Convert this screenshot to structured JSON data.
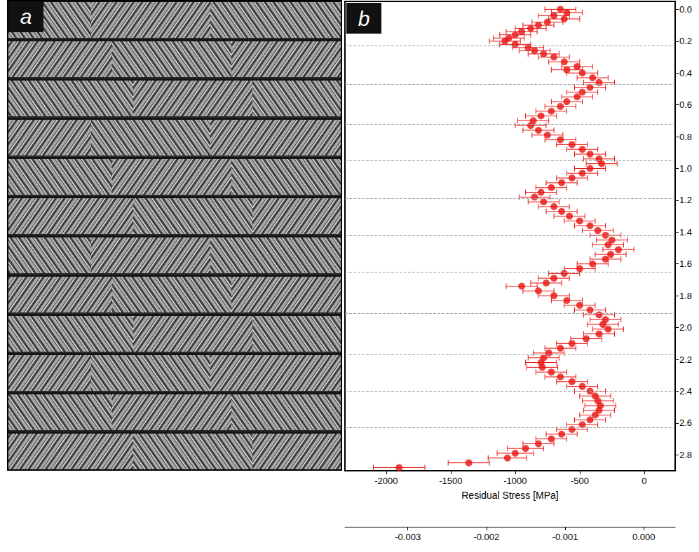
{
  "panel_labels": [
    "a",
    "b"
  ],
  "chart_data": {
    "type": "scatter",
    "x_label": "Residual Stress [MPa]",
    "xlim": [
      -2320,
      240
    ],
    "xticks": [
      -2000,
      -1500,
      -1000,
      -500,
      0
    ],
    "ylim": [
      -0.05,
      2.9
    ],
    "yticks": [
      {
        "value": 0,
        "label": "0.0"
      },
      0.2,
      0.4,
      0.6,
      0.8,
      {
        "value": 1,
        "label": "1.0"
      },
      1.2,
      1.4,
      1.6,
      1.8,
      {
        "value": 2,
        "label": "2.0"
      },
      2.2,
      2.4,
      2.6,
      2.8
    ],
    "x2lim": [
      -0.0038,
      0.0004
    ],
    "x2ticks": [
      -0.003,
      -0.002,
      -0.001,
      {
        "value": 0,
        "label": "0.000"
      }
    ],
    "grid": false,
    "reference_lines": {
      "y": [
        0.23,
        0.47,
        0.72,
        0.95,
        1.19,
        1.42,
        1.65,
        1.91,
        2.17,
        2.4,
        2.63
      ],
      "line_style": "dashed",
      "color": "#a0a0a0"
    },
    "series": [
      {
        "color": "#e8110f",
        "marker": "circle",
        "y": [
          0.0,
          0.02,
          0.04,
          0.06,
          0.08,
          0.1,
          0.12,
          0.14,
          0.16,
          0.18,
          0.2,
          0.22,
          0.24,
          0.26,
          0.28,
          0.3,
          0.33,
          0.36,
          0.38,
          0.4,
          0.43,
          0.46,
          0.49,
          0.52,
          0.55,
          0.58,
          0.61,
          0.64,
          0.67,
          0.7,
          0.73,
          0.76,
          0.79,
          0.82,
          0.85,
          0.88,
          0.91,
          0.94,
          0.97,
          1.0,
          1.03,
          1.06,
          1.09,
          1.12,
          1.15,
          1.18,
          1.21,
          1.24,
          1.27,
          1.3,
          1.33,
          1.36,
          1.39,
          1.42,
          1.45,
          1.48,
          1.51,
          1.54,
          1.57,
          1.6,
          1.63,
          1.66,
          1.69,
          1.72,
          1.74,
          1.77,
          1.8,
          1.83,
          1.86,
          1.89,
          1.92,
          1.95,
          1.98,
          2.01,
          2.04,
          2.07,
          2.1,
          2.13,
          2.16,
          2.19,
          2.22,
          2.25,
          2.28,
          2.31,
          2.34,
          2.37,
          2.4,
          2.43,
          2.46,
          2.49,
          2.52,
          2.55,
          2.58,
          2.61,
          2.64,
          2.67,
          2.7,
          2.73,
          2.76,
          2.79,
          2.82,
          2.85,
          2.88
        ],
        "x": [
          -650,
          -600,
          -700,
          -620,
          -750,
          -820,
          -880,
          -950,
          -1000,
          -1050,
          -1080,
          -1000,
          -900,
          -850,
          -780,
          -700,
          -620,
          -520,
          -600,
          -480,
          -400,
          -350,
          -420,
          -480,
          -520,
          -600,
          -650,
          -720,
          -800,
          -860,
          -880,
          -820,
          -750,
          -650,
          -560,
          -480,
          -420,
          -350,
          -330,
          -420,
          -480,
          -560,
          -640,
          -720,
          -800,
          -850,
          -780,
          -700,
          -640,
          -580,
          -500,
          -420,
          -360,
          -300,
          -250,
          -280,
          -200,
          -260,
          -300,
          -400,
          -500,
          -620,
          -700,
          -760,
          -950,
          -820,
          -700,
          -600,
          -500,
          -420,
          -350,
          -300,
          -320,
          -280,
          -350,
          -450,
          -560,
          -650,
          -740,
          -780,
          -800,
          -790,
          -720,
          -650,
          -560,
          -480,
          -420,
          -380,
          -360,
          -340,
          -350,
          -380,
          -420,
          -480,
          -560,
          -640,
          -720,
          -820,
          -920,
          -1000,
          -1060,
          -1360,
          -1900
        ],
        "xerr": [
          120,
          120,
          120,
          120,
          120,
          120,
          120,
          120,
          120,
          120,
          120,
          120,
          120,
          120,
          120,
          120,
          120,
          120,
          120,
          120,
          120,
          120,
          120,
          120,
          120,
          120,
          120,
          120,
          120,
          120,
          120,
          120,
          120,
          120,
          120,
          120,
          120,
          120,
          120,
          120,
          120,
          120,
          120,
          120,
          120,
          120,
          120,
          120,
          120,
          120,
          120,
          120,
          120,
          120,
          120,
          120,
          120,
          120,
          120,
          120,
          120,
          120,
          120,
          120,
          120,
          120,
          120,
          120,
          120,
          120,
          120,
          120,
          120,
          120,
          120,
          120,
          120,
          120,
          120,
          120,
          120,
          120,
          120,
          120,
          120,
          120,
          120,
          120,
          120,
          120,
          120,
          120,
          120,
          120,
          120,
          120,
          120,
          120,
          140,
          140,
          150,
          160,
          200
        ]
      }
    ]
  }
}
